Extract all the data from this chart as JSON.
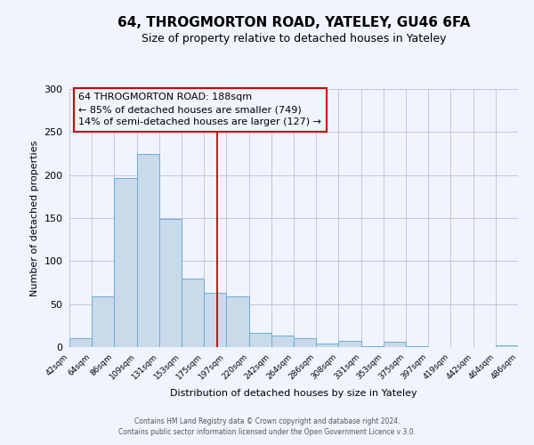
{
  "title": "64, THROGMORTON ROAD, YATELEY, GU46 6FA",
  "subtitle": "Size of property relative to detached houses in Yateley",
  "xlabel": "Distribution of detached houses by size in Yateley",
  "ylabel": "Number of detached properties",
  "bar_color": "#c9daea",
  "bar_edge_color": "#6aaed6",
  "grid_color": "#c0c8d8",
  "annotation_box_color": "#cc0000",
  "vline_color": "#cc0000",
  "bin_labels": [
    "42sqm",
    "64sqm",
    "86sqm",
    "109sqm",
    "131sqm",
    "153sqm",
    "175sqm",
    "197sqm",
    "220sqm",
    "242sqm",
    "264sqm",
    "286sqm",
    "308sqm",
    "331sqm",
    "353sqm",
    "375sqm",
    "397sqm",
    "419sqm",
    "442sqm",
    "464sqm",
    "486sqm"
  ],
  "bar_heights": [
    10,
    59,
    197,
    224,
    149,
    80,
    63,
    59,
    17,
    13,
    10,
    4,
    7,
    1,
    6,
    1,
    0,
    0,
    0,
    2
  ],
  "bin_edges": [
    42,
    64,
    86,
    109,
    131,
    153,
    175,
    197,
    220,
    242,
    264,
    286,
    308,
    331,
    353,
    375,
    397,
    419,
    442,
    464,
    486
  ],
  "vline_x": 188,
  "ylim": [
    0,
    300
  ],
  "yticks": [
    0,
    50,
    100,
    150,
    200,
    250,
    300
  ],
  "annotation_line1": "64 THROGMORTON ROAD: 188sqm",
  "annotation_line2": "← 85% of detached houses are smaller (749)",
  "annotation_line3": "14% of semi-detached houses are larger (127) →",
  "footer_line1": "Contains HM Land Registry data © Crown copyright and database right 2024.",
  "footer_line2": "Contains public sector information licensed under the Open Government Licence v 3.0.",
  "background_color": "#f0f4ff",
  "title_fontsize": 11,
  "subtitle_fontsize": 9,
  "ylabel_fontsize": 8,
  "xlabel_fontsize": 8,
  "ytick_fontsize": 8,
  "xtick_fontsize": 6.5,
  "footer_fontsize": 5.5,
  "annot_fontsize": 8
}
